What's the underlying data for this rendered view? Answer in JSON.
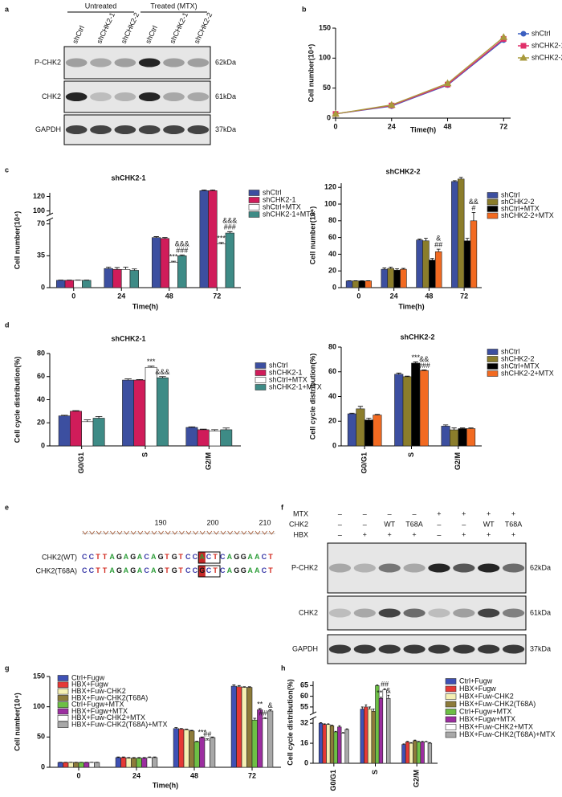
{
  "labels": [
    "a",
    "b",
    "c",
    "d",
    "e",
    "f",
    "g",
    "h"
  ],
  "blot_a": {
    "groups": [
      "Untreated",
      "Treated (MTX)"
    ],
    "lanes": [
      "shCtrl",
      "shCHK2-1",
      "shCHK2-2",
      "shCtrl",
      "shCHK2-1",
      "shCHK2-2"
    ],
    "rows": [
      {
        "name": "P-CHK2",
        "size": "62kDa"
      },
      {
        "name": "CHK2",
        "size": "61kDa"
      },
      {
        "name": "GAPDH",
        "size": "37kDa"
      }
    ]
  },
  "sequence_e": {
    "ruler": [
      190,
      200,
      210
    ],
    "rows": [
      {
        "name": "CHK2(WT)",
        "sequence": "CCTTAGAGACAGTGTCCACTCAGGAACT"
      },
      {
        "name": "CHK2(T68A)",
        "sequence": "CCTTAGAGACAGTGTCCGCTCAGGAACT"
      }
    ]
  },
  "blot_f": {
    "conditions": [
      {
        "name": "MTX",
        "lanes": [
          "–",
          "–",
          "–",
          "–",
          "+",
          "+",
          "+",
          "+"
        ]
      },
      {
        "name": "CHK2",
        "lanes": [
          "–",
          "–",
          "WT",
          "T68A",
          "–",
          "–",
          "WT",
          "T68A"
        ]
      },
      {
        "name": "HBX",
        "lanes": [
          "–",
          "+",
          "+",
          "+",
          "–",
          "+",
          "+",
          "+"
        ]
      }
    ],
    "rows": [
      {
        "name": "P-CHK2",
        "size": "62kDa"
      },
      {
        "name": "CHK2",
        "size": "61kDa"
      },
      {
        "name": "GAPDH",
        "size": "37kDa"
      }
    ]
  },
  "chart_data": [
    {
      "type": "line",
      "xlabel": "Time(h)",
      "ylabel": "Cell number(10⁴)",
      "x": [
        0,
        24,
        48,
        72
      ],
      "xlim": [
        0,
        75
      ],
      "xticks": [
        0,
        24,
        48,
        72
      ],
      "ylim": [
        0,
        150
      ],
      "yticks": [
        0,
        50,
        100,
        150
      ],
      "series": [
        {
          "name": "shCtrl",
          "color": "#3b5fc0",
          "marker": "circle",
          "values": [
            7,
            20,
            55,
            130
          ]
        },
        {
          "name": "shCHK2-1",
          "color": "#e0306a",
          "marker": "square",
          "values": [
            7,
            21,
            56,
            132
          ]
        },
        {
          "name": "shCHK2-2",
          "color": "#a89a3c",
          "marker": "triangle",
          "values": [
            7,
            22,
            58,
            135
          ]
        }
      ]
    },
    {
      "type": "bar",
      "title": "shCHK2-1",
      "xlabel": "Time(h)",
      "ylabel": "Cell number(10⁴)",
      "categories": [
        "0",
        "24",
        "48",
        "72"
      ],
      "ylim": [
        0,
        125
      ],
      "ybreak": [
        75,
        95
      ],
      "yticks": [
        0,
        35,
        70,
        100,
        120
      ],
      "series": [
        {
          "name": "shCtrl",
          "color": "#3c4fa0",
          "values": [
            8,
            21,
            55,
            128
          ],
          "errors": [
            0.3,
            1.5,
            1,
            1
          ]
        },
        {
          "name": "shCHK2-1",
          "color": "#d01c5a",
          "values": [
            8,
            20,
            54,
            128
          ],
          "errors": [
            0.3,
            2,
            1,
            1
          ]
        },
        {
          "name": "shCtrl+MTX",
          "color": "#ffffff",
          "values": [
            8,
            20,
            28,
            48
          ],
          "errors": [
            0.3,
            2.5,
            1,
            1.5
          ],
          "annotations": [
            null,
            null,
            [
              "***"
            ],
            [
              "***"
            ]
          ]
        },
        {
          "name": "shCHK2-1+MTX",
          "color": "#3e8b86",
          "values": [
            8,
            19,
            35,
            60
          ],
          "errors": [
            0.3,
            1.5,
            1,
            1.5
          ],
          "annotations": [
            null,
            null,
            [
              "&&&",
              "###"
            ],
            [
              "&&&",
              "###"
            ]
          ]
        }
      ]
    },
    {
      "type": "bar",
      "title": "shCHK2-2",
      "xlabel": "Time(h)",
      "ylabel": "Cell number(10⁴)",
      "categories": [
        "0",
        "24",
        "48",
        "72"
      ],
      "ylim": [
        0,
        125
      ],
      "yticks": [
        0,
        20,
        40,
        60,
        80,
        100,
        120
      ],
      "series": [
        {
          "name": "shCtrl",
          "color": "#3c4fa0",
          "values": [
            8,
            22,
            57,
            127
          ],
          "errors": [
            0.3,
            1.5,
            1,
            1
          ]
        },
        {
          "name": "shCHK2-2",
          "color": "#8b7d2b",
          "values": [
            8,
            23,
            56,
            130
          ],
          "errors": [
            0.3,
            1.5,
            3,
            2
          ]
        },
        {
          "name": "shCtrl+MTX",
          "color": "#000000",
          "values": [
            8,
            21,
            33,
            56
          ],
          "errors": [
            0.3,
            1.5,
            2,
            3
          ]
        },
        {
          "name": "shCHK2-2+MTX",
          "color": "#f26a21",
          "values": [
            8,
            22,
            43,
            80
          ],
          "errors": [
            0.3,
            1,
            3,
            10
          ],
          "annotations": [
            null,
            null,
            [
              "&",
              "##"
            ],
            [
              "&&",
              "#"
            ]
          ]
        }
      ]
    },
    {
      "type": "bar",
      "title": "shCHK2-1",
      "ylabel": "Cell cycle distribution(%)",
      "categories": [
        "G0/G1",
        "S",
        "G2/M"
      ],
      "ylim": [
        0,
        80
      ],
      "yticks": [
        0,
        20,
        40,
        60,
        80
      ],
      "rotate_categories": true,
      "series": [
        {
          "name": "shCtrl",
          "color": "#3c4fa0",
          "values": [
            26,
            57,
            16
          ],
          "errors": [
            0.5,
            1,
            0.5
          ]
        },
        {
          "name": "shCHK2-1",
          "color": "#d01c5a",
          "values": [
            30,
            57,
            14
          ],
          "errors": [
            0.5,
            0.5,
            0.5
          ]
        },
        {
          "name": "shCtrl+MTX",
          "color": "#ffffff",
          "values": [
            21,
            68,
            13
          ],
          "errors": [
            1.5,
            1,
            1
          ],
          "annotations": [
            null,
            [
              "***"
            ],
            null
          ]
        },
        {
          "name": "shCHK2-1+MTX",
          "color": "#3e8b86",
          "values": [
            24,
            59,
            14
          ],
          "errors": [
            1.5,
            1,
            1.5
          ],
          "annotations": [
            null,
            [
              "&&&"
            ],
            null
          ]
        }
      ]
    },
    {
      "type": "bar",
      "title": "shCHK2-2",
      "ylabel": "Cell cycle distribution(%)",
      "categories": [
        "G0/G1",
        "S",
        "G2/M"
      ],
      "ylim": [
        0,
        80
      ],
      "yticks": [
        0,
        20,
        40,
        60,
        80
      ],
      "rotate_categories": true,
      "series": [
        {
          "name": "shCtrl",
          "color": "#3c4fa0",
          "values": [
            26,
            58,
            16
          ],
          "errors": [
            0.5,
            1,
            1
          ]
        },
        {
          "name": "shCHK2-2",
          "color": "#8b7d2b",
          "values": [
            30,
            56,
            13
          ],
          "errors": [
            2,
            0.5,
            1.5
          ]
        },
        {
          "name": "shCtrl+MTX",
          "color": "#000000",
          "values": [
            21,
            67,
            14
          ],
          "errors": [
            1.5,
            1,
            0.5
          ],
          "annotations": [
            null,
            [
              "***"
            ],
            null
          ]
        },
        {
          "name": "shCHK2-2+MTX",
          "color": "#f26a21",
          "values": [
            25,
            61,
            14
          ],
          "errors": [
            0.5,
            0.5,
            0.5
          ],
          "annotations": [
            null,
            [
              "&&",
              "###"
            ],
            null
          ]
        }
      ]
    },
    {
      "type": "bar",
      "xlabel": "Time(h)",
      "ylabel": "Cell number(10⁴)",
      "categories": [
        "0",
        "24",
        "48",
        "72"
      ],
      "ylim": [
        0,
        150
      ],
      "yticks": [
        0,
        50,
        100,
        150
      ],
      "series": [
        {
          "name": "Ctrl+Fugw",
          "color": "#3f51b5",
          "values": [
            8,
            16,
            64,
            134
          ],
          "errors": [
            0.3,
            1,
            1.5,
            2
          ]
        },
        {
          "name": "HBX+Fugw",
          "color": "#e53935",
          "values": [
            8,
            16,
            63,
            133
          ],
          "errors": [
            0.3,
            1,
            1,
            2
          ]
        },
        {
          "name": "HBX+Fuw-CHK2",
          "color": "#f5f0b4",
          "values": [
            8,
            15,
            62,
            132
          ],
          "errors": [
            0.3,
            1,
            1,
            1
          ]
        },
        {
          "name": "HBX+Fuw-CHK2(T68A)",
          "color": "#8d7b3a",
          "values": [
            8,
            15,
            60,
            132
          ],
          "errors": [
            0.3,
            1,
            1,
            1
          ]
        },
        {
          "name": "Ctrl+Fugw+MTX",
          "color": "#6dbf45",
          "values": [
            8,
            15,
            42,
            78
          ],
          "errors": [
            0.3,
            1,
            1,
            3
          ]
        },
        {
          "name": "HBX+Fugw+MTX",
          "color": "#9c2ea0",
          "values": [
            8,
            15,
            49,
            95
          ],
          "errors": [
            0.3,
            1,
            1,
            2
          ],
          "annotations": [
            null,
            null,
            [
              "***"
            ],
            [
              "**"
            ]
          ]
        },
        {
          "name": "HBX+Fuw-CHK2+MTX",
          "color": "#ffffff",
          "values": [
            8,
            16,
            45,
            80
          ],
          "errors": [
            0.3,
            1,
            2,
            2
          ],
          "annotations": [
            null,
            null,
            [
              "##"
            ],
            [
              "###"
            ]
          ]
        },
        {
          "name": "HBX+Fuw-CHK2(T68A)+MTX",
          "color": "#a8a8a8",
          "values": [
            8,
            16,
            49,
            93
          ],
          "errors": [
            0.3,
            1,
            1,
            2
          ],
          "annotations": [
            null,
            null,
            null,
            [
              "&"
            ]
          ]
        }
      ]
    },
    {
      "type": "bar",
      "ylabel": "Cell cycle distribution(%)",
      "categories": [
        "G0/G1",
        "S",
        "G2/M"
      ],
      "ylim": [
        0,
        67
      ],
      "ybreak": [
        36,
        52
      ],
      "yticks": [
        0,
        16,
        32,
        55,
        60,
        65
      ],
      "rotate_categories": true,
      "series": [
        {
          "name": "Ctrl+Fugw",
          "color": "#3f51b5",
          "values": [
            32,
            54,
            15
          ],
          "errors": [
            0.5,
            1,
            0.5
          ]
        },
        {
          "name": "HBX+Fugw",
          "color": "#e53935",
          "values": [
            31,
            55,
            17
          ],
          "errors": [
            0.5,
            1,
            0.5
          ]
        },
        {
          "name": "HBX+Fuw-CHK2",
          "color": "#f5f0b4",
          "values": [
            31,
            54,
            16
          ],
          "errors": [
            0.5,
            1,
            0.5
          ]
        },
        {
          "name": "HBX+Fuw-CHK2(T68A)",
          "color": "#8d7b3a",
          "values": [
            30,
            53,
            18
          ],
          "errors": [
            0.5,
            1,
            0.5
          ]
        },
        {
          "name": "Ctrl+Fugw+MTX",
          "color": "#6dbf45",
          "values": [
            25,
            65,
            17
          ],
          "errors": [
            0.5,
            0.3,
            0.5
          ]
        },
        {
          "name": "HBX+Fugw+MTX",
          "color": "#9c2ea0",
          "values": [
            29,
            59,
            17
          ],
          "errors": [
            1,
            0.5,
            0.5
          ],
          "annotations": [
            null,
            [
              "***"
            ],
            null
          ]
        },
        {
          "name": "HBX+Fuw-CHK2+MTX",
          "color": "#ffffff",
          "values": [
            24,
            63,
            17
          ],
          "errors": [
            0.5,
            0.5,
            0.5
          ],
          "annotations": [
            null,
            [
              "##"
            ],
            null
          ]
        },
        {
          "name": "HBX+Fuw-CHK2(T68A)+MTX",
          "color": "#a8a8a8",
          "values": [
            27,
            59,
            16
          ],
          "errors": [
            0.5,
            1.5,
            0.5
          ],
          "annotations": [
            null,
            [
              "&"
            ],
            null
          ]
        }
      ]
    }
  ]
}
